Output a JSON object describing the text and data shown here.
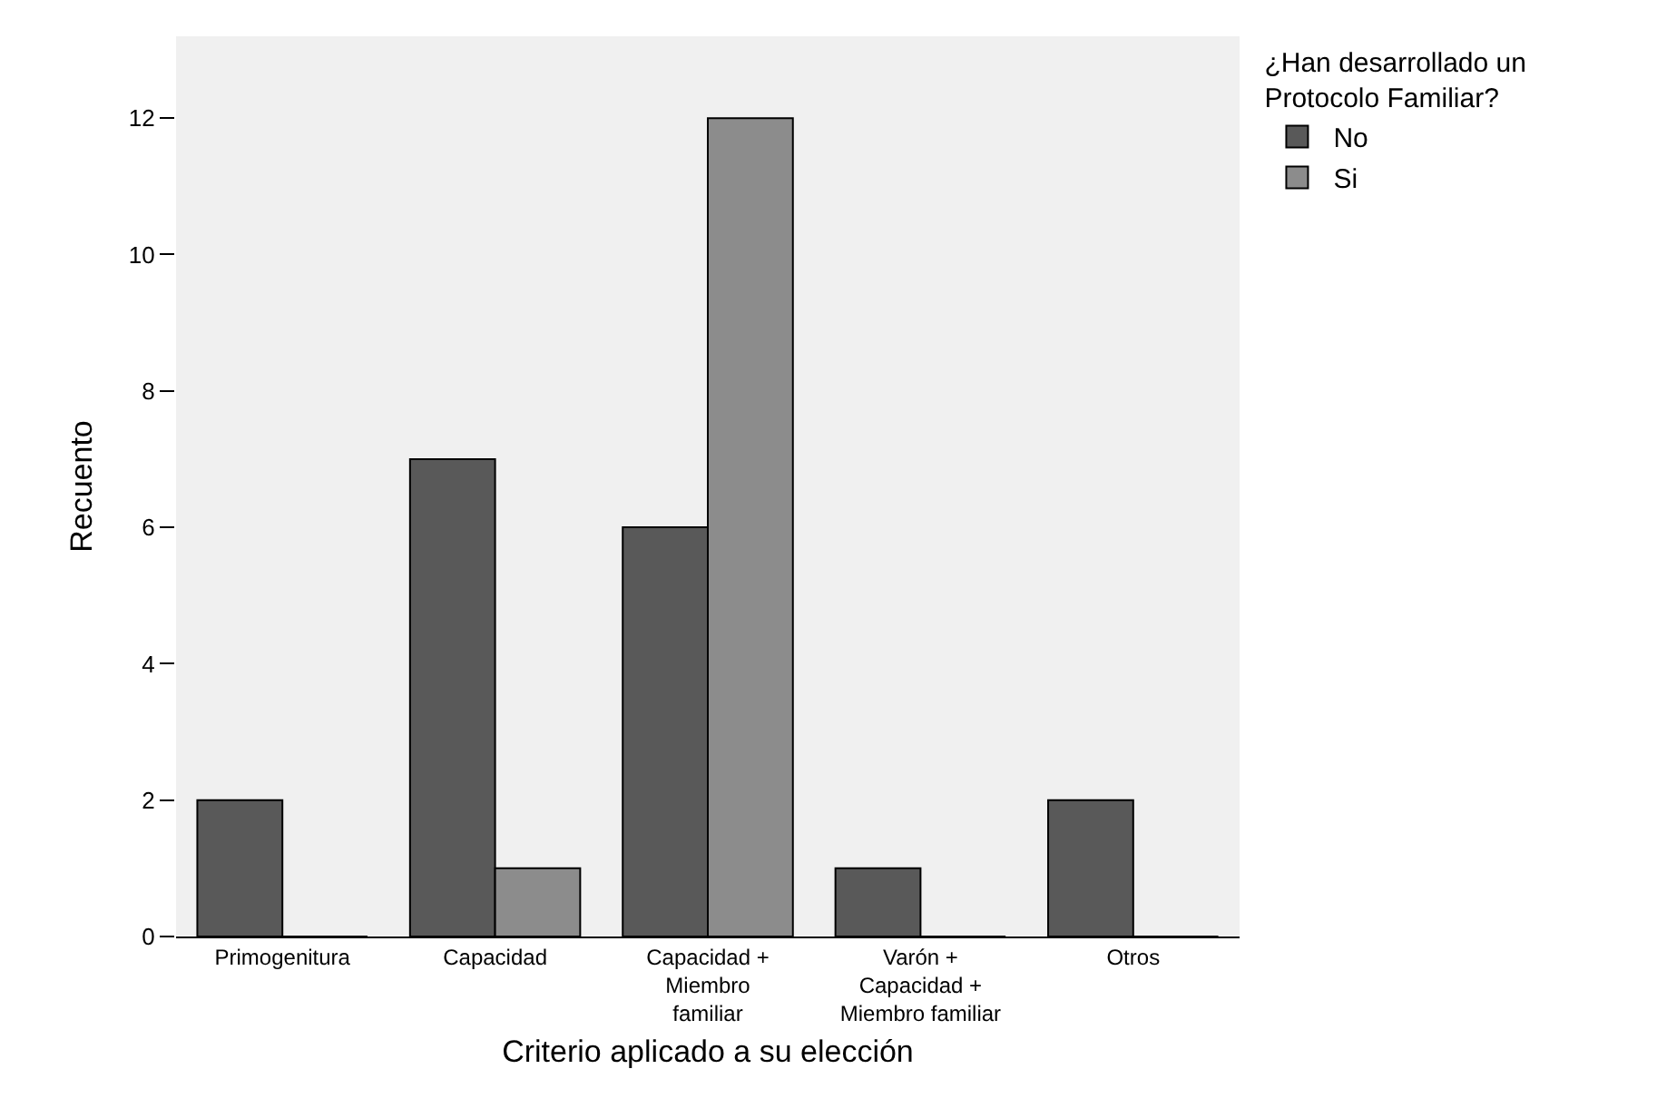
{
  "chart_data": {
    "type": "bar",
    "xlabel": "Criterio aplicado a su elección",
    "ylabel": "Recuento",
    "legend_title": "¿Han desarrollado un\nProtocolo Familiar?",
    "categories": [
      "Primogenitura",
      "Capacidad",
      "Capacidad +\nMiembro\nfamiliar",
      "Varón +\nCapacidad +\nMiembro familiar",
      "Otros"
    ],
    "series": [
      {
        "name": "No",
        "color": "#595959",
        "values": [
          2,
          7,
          6,
          1,
          2
        ]
      },
      {
        "name": "Si",
        "color": "#8c8c8c",
        "values": [
          0,
          1,
          12,
          0,
          0
        ]
      }
    ],
    "ylim": [
      0,
      13.2
    ],
    "yticks": [
      0,
      2,
      4,
      6,
      8,
      10,
      12
    ],
    "grid": false,
    "legend": "top right"
  }
}
